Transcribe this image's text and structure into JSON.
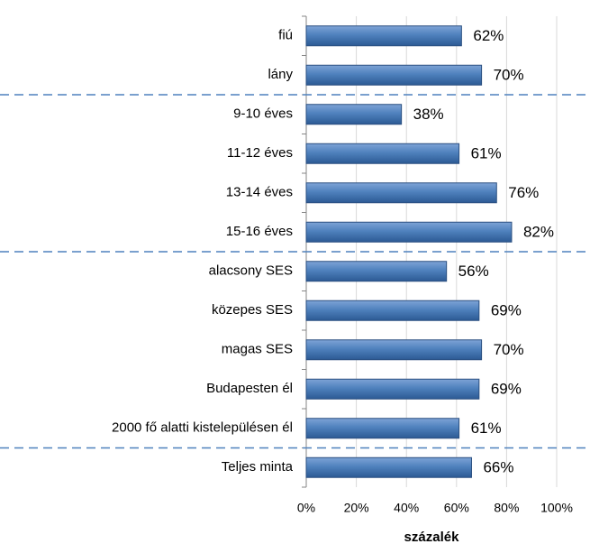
{
  "chart_data": {
    "type": "bar",
    "orientation": "horizontal",
    "x_label": "százalék",
    "categories": [
      "fiú",
      "lány",
      "9-10 éves",
      "11-12 éves",
      "13-14 éves",
      "15-16 éves",
      "alacsony SES",
      "közepes SES",
      "magas SES",
      "Budapesten él",
      "2000 fő alatti kistelepülésen él",
      "Teljes minta"
    ],
    "values": [
      62,
      70,
      38,
      61,
      76,
      82,
      56,
      69,
      70,
      69,
      61,
      66
    ],
    "value_labels": [
      "62%",
      "70%",
      "38%",
      "61%",
      "76%",
      "82%",
      "56%",
      "69%",
      "70%",
      "69%",
      "61%",
      "66%"
    ],
    "color": "#4f81bd",
    "xlim": [
      0,
      100
    ],
    "xticks": [
      {
        "value": 0,
        "label": "0%"
      },
      {
        "value": 20,
        "label": "20%"
      },
      {
        "value": 40,
        "label": "40%"
      },
      {
        "value": 60,
        "label": "60%"
      },
      {
        "value": 80,
        "label": "80%"
      },
      {
        "value": 100,
        "label": "100%"
      }
    ],
    "grid": true
  }
}
